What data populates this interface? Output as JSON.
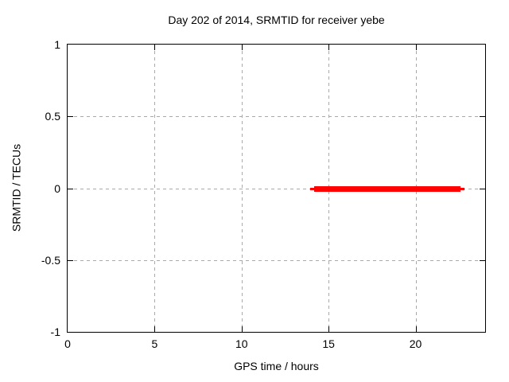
{
  "chart_data": {
    "type": "line",
    "title": "Day 202 of 2014, SRMTID for receiver yebe",
    "xlabel": "GPS time / hours",
    "ylabel": "SRMTID / TECUs",
    "xlim": [
      0,
      24
    ],
    "ylim": [
      -1,
      1
    ],
    "xticks": {
      "values": [
        0,
        5,
        10,
        15,
        20
      ],
      "labels": [
        "0",
        "5",
        "10",
        "15",
        "20"
      ]
    },
    "yticks": {
      "values": [
        1,
        0.5,
        0,
        -0.5,
        -1
      ],
      "labels": [
        "1",
        "0.5",
        "0",
        "-0.5",
        "-1"
      ]
    },
    "grid": true,
    "legend": "none",
    "series": [
      {
        "name": "SRMTID",
        "color": "#ff0000",
        "style": "thick horizontal line",
        "y": 0,
        "points": [
          [
            14.0,
            0
          ],
          [
            22.8,
            0
          ]
        ],
        "x_outer": [
          13.95,
          22.8
        ],
        "x_core": [
          14.15,
          22.6
        ],
        "core_thickness_px": 7,
        "outer_thickness_px": 3
      }
    ]
  },
  "colors": {
    "background": "#ffffff",
    "axis": "#000000",
    "text": "#000000",
    "grid": "#a9a9a9",
    "series_line": "#ff0000"
  }
}
